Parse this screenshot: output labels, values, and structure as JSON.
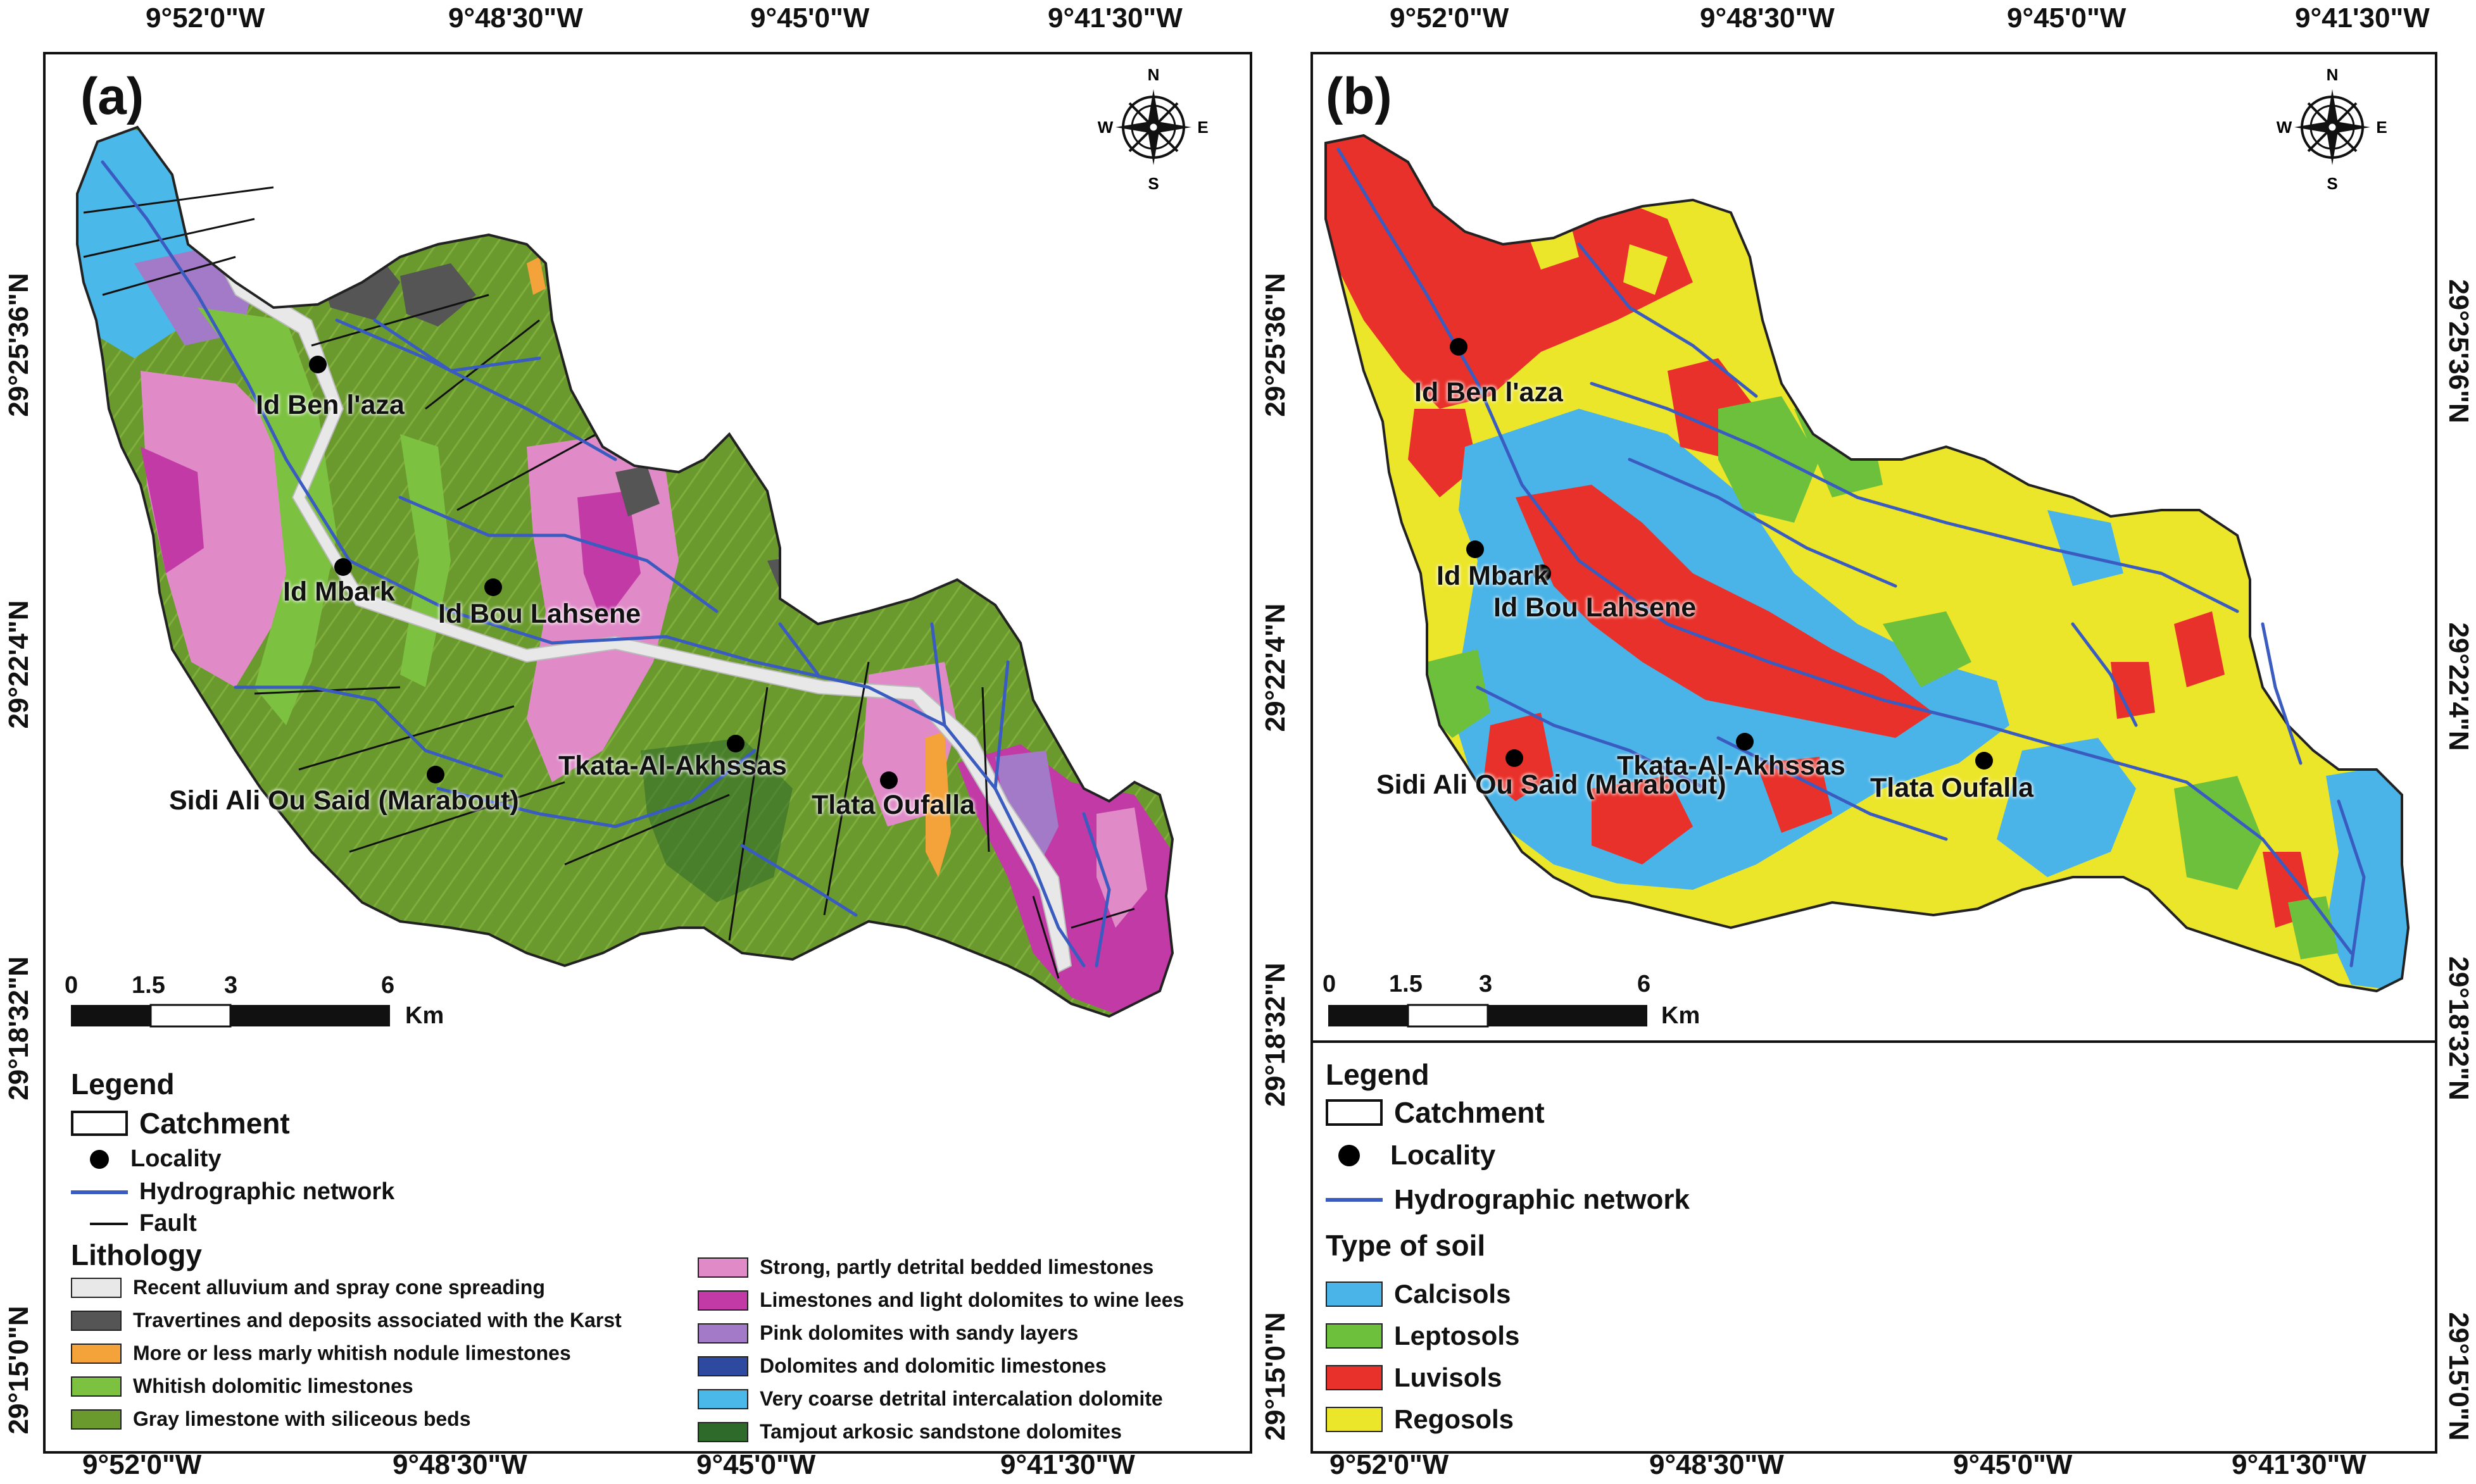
{
  "panel_a": {
    "label": "(a)",
    "top_coords": [
      "9°52'0\"W",
      "9°48'30\"W",
      "9°45'0\"W",
      "9°41'30\"W"
    ],
    "bottom_coords": [
      "9°52'0\"W",
      "9°48'30\"W",
      "9°45'0\"W",
      "9°41'30\"W"
    ],
    "left_coords": [
      "29°25'36\"N",
      "29°22'4\"N",
      "29°18'32\"N",
      "29°15'0\"N"
    ],
    "localities": [
      "Id Ben l'aza",
      "Id Mbark",
      "Id Bou Lahsene",
      "Sidi Ali Ou Said (Marabout)",
      "Tkata-Al-Akhssas",
      "Tlata Oufalla"
    ],
    "scale": {
      "ticks": [
        "0",
        "1.5",
        "3",
        "6"
      ],
      "unit": "Km"
    },
    "legend": {
      "title": "Legend",
      "catchment": "Catchment",
      "locality": "Locality",
      "hydro": "Hydrographic network",
      "fault": "Fault",
      "lithology_title": "Lithology",
      "lithology": [
        {
          "label": "Recent alluvium and spray cone spreading",
          "color": "#e8e8e8"
        },
        {
          "label": "Travertines and deposits associated with the Karst",
          "color": "#555555"
        },
        {
          "label": "More or less marly whitish nodule limestones",
          "color": "#f4a23a"
        },
        {
          "label": "Whitish dolomitic limestones",
          "color": "#7cc240"
        },
        {
          "label": "Gray limestone with siliceous beds",
          "color": "#6a9a2e"
        },
        {
          "label": "Strong, partly detrital bedded limestones",
          "color": "#e08bc8"
        },
        {
          "label": "Limestones and light dolomites to wine lees",
          "color": "#c23aa6"
        },
        {
          "label": "Pink dolomites with sandy layers",
          "color": "#a27ac8"
        },
        {
          "label": "Dolomites and dolomitic limestones",
          "color": "#2d4aa0"
        },
        {
          "label": "Very coarse detrital intercalation dolomite",
          "color": "#4ab8e8"
        },
        {
          "label": "Tamjout arkosic sandstone dolomites",
          "color": "#2e6a2a"
        }
      ]
    }
  },
  "panel_b": {
    "label": "(b)",
    "top_coords": [
      "9°52'0\"W",
      "9°48'30\"W",
      "9°45'0\"W",
      "9°41'30\"W"
    ],
    "bottom_coords": [
      "9°52'0\"W",
      "9°48'30\"W",
      "9°45'0\"W",
      "9°41'30\"W"
    ],
    "left_coords": [
      "29°25'36\"N",
      "29°22'4\"N",
      "29°18'32\"N",
      "29°15'0\"N"
    ],
    "right_coords": [
      "29°25'36\"N",
      "29°22'4\"N",
      "29°18'32\"N",
      "29°15'0\"N"
    ],
    "localities": [
      "Id Ben l'aza",
      "Id Mbark",
      "Id Bou Lahsene",
      "Sidi Ali Ou Said (Marabout)",
      "Tkata-Al-Akhssas",
      "Tlata Oufalla"
    ],
    "scale": {
      "ticks": [
        "0",
        "1.5",
        "3",
        "6"
      ],
      "unit": "Km"
    },
    "legend": {
      "title": "Legend",
      "catchment": "Catchment",
      "locality": "Locality",
      "hydro": "Hydrographic network",
      "soil_title": "Type of soil",
      "soils": [
        {
          "label": "Calcisols",
          "color": "#4ab4e8"
        },
        {
          "label": "Leptosols",
          "color": "#6cc03c"
        },
        {
          "label": "Luvisols",
          "color": "#e8312a"
        },
        {
          "label": "Regosols",
          "color": "#ece62a"
        }
      ]
    }
  },
  "compass": {
    "n": "N",
    "s": "S",
    "e": "E",
    "w": "W"
  },
  "colors": {
    "hydro": "#3a5bc0",
    "fault": "#111111",
    "frame": "#111111"
  }
}
